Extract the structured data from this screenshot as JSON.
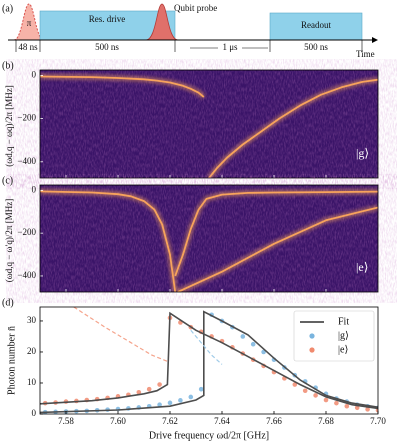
{
  "sequence": {
    "label": "(a)",
    "pi": "π",
    "pi_duration": "48 ns",
    "drive": "Res. drive",
    "drive_duration": "500 ns",
    "probe": "Qubit probe",
    "delay": "1 μs",
    "readout": "Readout",
    "readout_duration": "500 ns",
    "axis": "Time"
  },
  "chart_data": [
    {
      "type": "heatmap",
      "label": "(b)",
      "inset": "|g⟩",
      "ylabel": "(ωd,q − ωq)/2π [MHz]",
      "xlim": [
        7.57,
        7.7
      ],
      "xticks": [
        7.58,
        7.6,
        7.62,
        7.64,
        7.66,
        7.68,
        7.7
      ],
      "ylim": [
        -475,
        25
      ],
      "yticks": [
        0,
        {
          "value": -200,
          "label": "−200"
        },
        {
          "value": -400,
          "label": "−400"
        }
      ],
      "background_color": "#3a1468",
      "ridge_color": "#f7a35c",
      "series": [
        {
          "x": [
            7.57,
            7.59,
            7.6,
            7.61,
            7.615,
            7.62,
            7.625,
            7.628,
            7.631,
            7.633
          ],
          "values": [
            -5,
            -8,
            -12,
            -18,
            -24,
            -33,
            -48,
            -62,
            -80,
            -100
          ]
        },
        {
          "x": [
            7.635,
            7.638,
            7.642,
            7.648,
            7.655,
            7.662,
            7.67,
            7.678,
            7.686,
            7.694,
            7.7
          ],
          "values": [
            -475,
            -430,
            -380,
            -320,
            -260,
            -200,
            -140,
            -90,
            -55,
            -30,
            -20
          ]
        }
      ]
    },
    {
      "type": "heatmap",
      "label": "(c)",
      "inset": "|e⟩",
      "ylabel": "(ωd,q − ω′q)/2π [MHz]",
      "xlim": [
        7.57,
        7.7
      ],
      "xticks": [
        7.58,
        7.6,
        7.62,
        7.64,
        7.66,
        7.68,
        7.7
      ],
      "ylim": [
        -475,
        25
      ],
      "yticks": [
        0,
        {
          "value": -200,
          "label": "−200"
        },
        {
          "value": -400,
          "label": "−400"
        }
      ],
      "background_color": "#3a1468",
      "ridge_color": "#f7a35c",
      "series": [
        {
          "x": [
            7.57,
            7.59,
            7.6,
            7.605,
            7.61,
            7.614,
            7.617,
            7.62,
            7.622
          ],
          "values": [
            -5,
            -10,
            -18,
            -28,
            -50,
            -90,
            -160,
            -300,
            -475
          ]
        },
        {
          "x": [
            7.622,
            7.625,
            7.628,
            7.631,
            7.634,
            7.64,
            7.65,
            7.66,
            7.68,
            7.7
          ],
          "values": [
            -400,
            -300,
            -180,
            -90,
            -40,
            -20,
            -12,
            -10,
            -8,
            -6
          ]
        },
        {
          "x": [
            7.623,
            7.64,
            7.66,
            7.68,
            7.7
          ],
          "values": [
            -475,
            -380,
            -250,
            -140,
            -80
          ]
        }
      ]
    },
    {
      "type": "line",
      "label": "(d)",
      "xlabel": "Drive frequency ωd/2π [GHz]",
      "ylabel": "Photon number n̄",
      "xlim": [
        7.57,
        7.7
      ],
      "xticks": [
        7.58,
        {
          "value": 7.6,
          "label": "7.60"
        },
        7.62,
        7.64,
        7.66,
        7.68,
        {
          "value": 7.7,
          "label": "7.70"
        }
      ],
      "ylim": [
        0,
        34.5
      ],
      "yticks": [
        0,
        10,
        20,
        30
      ],
      "legend": "upper right",
      "x": [
        7.572,
        7.576,
        7.58,
        7.584,
        7.588,
        7.592,
        7.596,
        7.6,
        7.604,
        7.608,
        7.612,
        7.616,
        7.62,
        7.624,
        7.628,
        7.632,
        7.636,
        7.64,
        7.644,
        7.648,
        7.652,
        7.656,
        7.66,
        7.664,
        7.668,
        7.672,
        7.676,
        7.68,
        7.684,
        7.688,
        7.692,
        7.696,
        7.7
      ],
      "series": [
        {
          "name": "Fit",
          "type": "line",
          "color": "#4d4d4d",
          "x": [
            7.57,
            7.6,
            7.62,
            7.63,
            7.633,
            7.633,
            7.64,
            7.65,
            7.66,
            7.67,
            7.68,
            7.69,
            7.7
          ],
          "values": [
            0.5,
            1.3,
            2.5,
            4.5,
            6,
            33,
            30,
            25.5,
            18,
            11,
            6,
            3.5,
            2.2
          ]
        },
        {
          "type": "line",
          "color": "#4d4d4d",
          "x": [
            7.57,
            7.59,
            7.6,
            7.61,
            7.615,
            7.619,
            7.62,
            7.63,
            7.64,
            7.65,
            7.66,
            7.67,
            7.68,
            7.69,
            7.7
          ],
          "values": [
            3.3,
            4.3,
            5.2,
            6.5,
            7.5,
            9.5,
            32.5,
            27,
            23,
            18.5,
            14,
            9.5,
            5.5,
            3,
            1.8
          ]
        },
        {
          "name": "|g⟩",
          "type": "scatter",
          "color": "#79b4de",
          "values": [
            0.6,
            0.7,
            0.8,
            0.9,
            1.0,
            1.2,
            1.4,
            1.6,
            1.8,
            2.1,
            2.5,
            3,
            3.6,
            4.4,
            5.5,
            8,
            32,
            30,
            28,
            25,
            22.5,
            20,
            17.5,
            15,
            12.5,
            10.5,
            8.5,
            6.5,
            5,
            4,
            3,
            2.5,
            2
          ]
        },
        {
          "name": "|e⟩",
          "type": "scatter",
          "color": "#f08a6e",
          "values": [
            3.5,
            3.7,
            4,
            4.2,
            4.5,
            4.8,
            5.2,
            5.7,
            6.2,
            7,
            8,
            9.5,
            31,
            29.5,
            28,
            26.5,
            25,
            23.5,
            21.5,
            19.5,
            17.5,
            15.5,
            13.5,
            11.5,
            9.5,
            7.5,
            6,
            4.5,
            3.5,
            2.5,
            2,
            1.5,
            1.2
          ]
        },
        {
          "type": "line",
          "dashed": true,
          "color": "#9fcbe8",
          "x": [
            7.628,
            7.632,
            7.636,
            7.64
          ],
          "values": [
            27,
            23,
            19,
            16
          ]
        },
        {
          "type": "line",
          "dashed": true,
          "color": "#f5a48c",
          "x": [
            7.583,
            7.595,
            7.605,
            7.613,
            7.619
          ],
          "values": [
            34.5,
            28,
            23,
            19,
            17
          ]
        }
      ]
    }
  ]
}
